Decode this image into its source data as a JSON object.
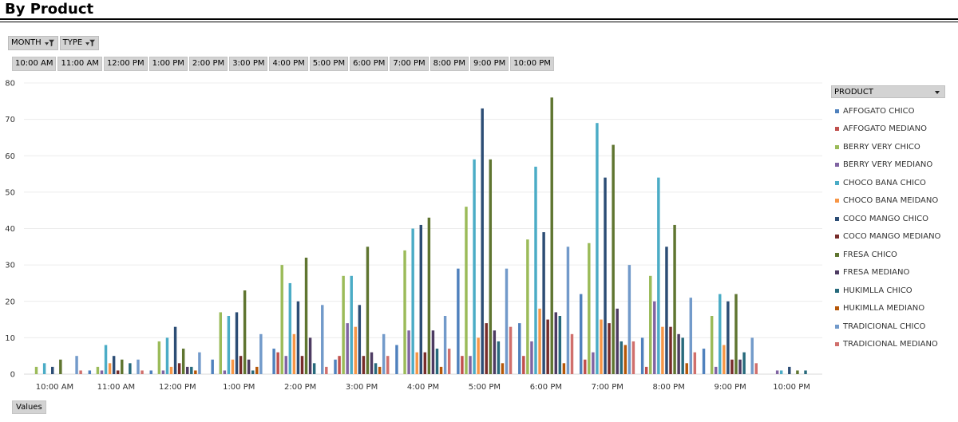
{
  "header": {
    "title": "By Product"
  },
  "filters": [
    {
      "label": "MONTH"
    },
    {
      "label": "TYPE"
    }
  ],
  "legend_header": "PRODUCT",
  "values_label": "Values",
  "chart_data": {
    "type": "bar",
    "title": "",
    "xlabel": "",
    "ylabel": "",
    "ylim": [
      0,
      80
    ],
    "yticks": [
      0,
      10,
      20,
      30,
      40,
      50,
      60,
      70,
      80
    ],
    "grid": true,
    "legend_position": "right",
    "categories": [
      "10:00 AM",
      "11:00 AM",
      "12:00 PM",
      "1:00 PM",
      "2:00 PM",
      "3:00 PM",
      "4:00 PM",
      "5:00 PM",
      "6:00 PM",
      "7:00 PM",
      "8:00 PM",
      "9:00 PM",
      "10:00 PM"
    ],
    "series": [
      {
        "name": "AFFOGATO CHICO",
        "color": "#4f81bd",
        "values": [
          0,
          1,
          1,
          4,
          7,
          4,
          8,
          29,
          14,
          22,
          10,
          7,
          0
        ]
      },
      {
        "name": "AFFOGATO MEDIANO",
        "color": "#c0504d",
        "values": [
          0,
          0,
          0,
          0,
          6,
          5,
          0,
          5,
          5,
          4,
          2,
          0,
          0
        ]
      },
      {
        "name": "BERRY VERY CHICO",
        "color": "#9bbb59",
        "values": [
          2,
          2,
          9,
          17,
          30,
          27,
          34,
          46,
          37,
          36,
          27,
          16,
          0
        ]
      },
      {
        "name": "BERRY VERY MEDIANO",
        "color": "#8064a2",
        "values": [
          0,
          1,
          1,
          1,
          5,
          14,
          12,
          5,
          9,
          6,
          20,
          2,
          1
        ]
      },
      {
        "name": "CHOCO BANA CHICO",
        "color": "#4bacc6",
        "values": [
          3,
          8,
          10,
          16,
          25,
          27,
          40,
          59,
          57,
          69,
          54,
          22,
          1
        ]
      },
      {
        "name": "CHOCO BANA MEIDANO",
        "color": "#f79646",
        "values": [
          0,
          3,
          2,
          4,
          11,
          13,
          6,
          10,
          18,
          15,
          13,
          8,
          0
        ]
      },
      {
        "name": "COCO MANGO CHICO",
        "color": "#2c4d75",
        "values": [
          2,
          5,
          13,
          17,
          20,
          19,
          41,
          73,
          39,
          54,
          35,
          20,
          2
        ]
      },
      {
        "name": "COCO MANGO MEDIANO",
        "color": "#772c2a",
        "values": [
          0,
          1,
          3,
          5,
          5,
          5,
          6,
          14,
          15,
          14,
          13,
          4,
          0
        ]
      },
      {
        "name": "FRESA CHICO",
        "color": "#5f7530",
        "values": [
          4,
          4,
          7,
          23,
          32,
          35,
          43,
          59,
          76,
          63,
          41,
          22,
          1
        ]
      },
      {
        "name": "FRESA MEDIANO",
        "color": "#4d3b62",
        "values": [
          0,
          0,
          2,
          4,
          10,
          6,
          12,
          12,
          17,
          18,
          11,
          4,
          0
        ]
      },
      {
        "name": "HUKIMLLA CHICO",
        "color": "#276a7c",
        "values": [
          0,
          3,
          2,
          1,
          3,
          3,
          7,
          9,
          16,
          9,
          10,
          6,
          1
        ]
      },
      {
        "name": "HUKIMLLA MEDIANO",
        "color": "#b65708",
        "values": [
          0,
          0,
          1,
          2,
          0,
          2,
          2,
          3,
          3,
          8,
          3,
          0,
          0
        ]
      },
      {
        "name": "TRADICIONAL CHICO",
        "color": "#729aca",
        "values": [
          5,
          4,
          6,
          11,
          19,
          11,
          16,
          29,
          35,
          30,
          21,
          10,
          0
        ]
      },
      {
        "name": "TRADICIONAL MEDIANO",
        "color": "#d06f6c",
        "values": [
          1,
          1,
          0,
          0,
          2,
          5,
          7,
          13,
          11,
          9,
          6,
          3,
          0
        ]
      }
    ]
  }
}
